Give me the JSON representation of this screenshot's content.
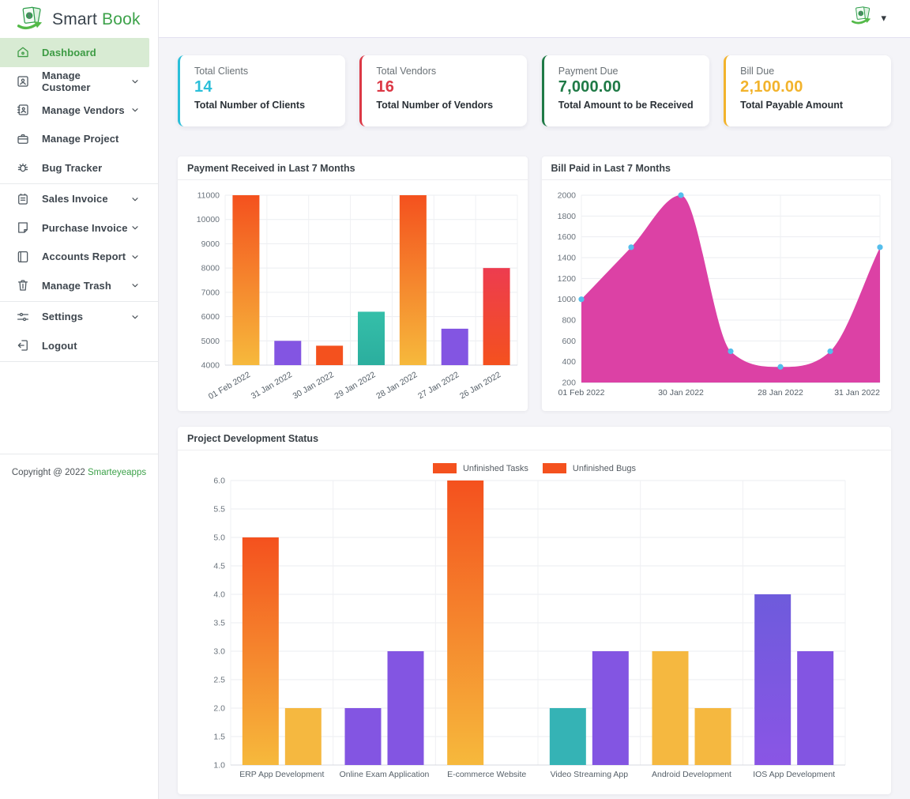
{
  "app": {
    "brand_first": "Smart ",
    "brand_second": "Book"
  },
  "topbar": {
    "icons": [
      "money-logo-icon",
      "caret-down-icon"
    ],
    "caret_glyph": "▾"
  },
  "sidebar": {
    "items": [
      {
        "label": "Dashboard",
        "icon": "home-icon",
        "active": true,
        "chevron": false
      },
      {
        "label": "Manage Customer",
        "icon": "customer-icon",
        "active": false,
        "chevron": true
      },
      {
        "label": "Manage Vendors",
        "icon": "vendors-icon",
        "active": false,
        "chevron": true
      },
      {
        "label": "Manage Project",
        "icon": "briefcase-icon",
        "active": false,
        "chevron": false
      },
      {
        "label": "Bug Tracker",
        "icon": "bug-icon",
        "active": false,
        "chevron": false,
        "divider_after": true
      },
      {
        "label": "Sales Invoice",
        "icon": "sales-invoice-icon",
        "active": false,
        "chevron": true
      },
      {
        "label": "Purchase Invoice",
        "icon": "purchase-invoice-icon",
        "active": false,
        "chevron": true
      },
      {
        "label": "Accounts Report",
        "icon": "accounts-report-icon",
        "active": false,
        "chevron": true
      },
      {
        "label": "Manage Trash",
        "icon": "trash-icon",
        "active": false,
        "chevron": true,
        "divider_after": true
      },
      {
        "label": "Settings",
        "icon": "settings-sliders-icon",
        "active": false,
        "chevron": true
      },
      {
        "label": "Logout",
        "icon": "logout-icon",
        "active": false,
        "chevron": false,
        "divider_after": true
      }
    ],
    "copyright_prefix": "Copyright @ 2022",
    "copyright_link": "Smarteyeapps"
  },
  "stats": [
    {
      "label": "Total Clients",
      "value": "14",
      "sublabel": "Total Number of Clients",
      "color": "#2BBFD9"
    },
    {
      "label": "Total Vendors",
      "value": "16",
      "sublabel": "Total Number of Vendors",
      "color": "#DC3845"
    },
    {
      "label": "Payment Due",
      "value": "7,000.00",
      "sublabel": "Total Amount to be Received",
      "color": "#1F7A46"
    },
    {
      "label": "Bill Due",
      "value": "2,100.00",
      "sublabel": "Total Payable Amount",
      "color": "#F2B32C"
    }
  ],
  "chart_data": [
    {
      "type": "bar",
      "title": "Payment Received in Last 7 Months",
      "categories": [
        "01 Feb 2022",
        "31 Jan 2022",
        "30 Jan 2022",
        "29 Jan 2022",
        "28 Jan 2022",
        "27 Jan 2022",
        "26 Jan 2022"
      ],
      "values": [
        11000,
        5000,
        4800,
        6200,
        11000,
        5500,
        8000
      ],
      "colors": [
        [
          "#F4511E",
          "#F6B93C"
        ],
        "#8355E2",
        "#F4511E",
        [
          "#35BFA9",
          "#2BAE9E"
        ],
        [
          "#F4511E",
          "#F6B93C"
        ],
        "#8355E2",
        [
          "#ED3C4F",
          "#F4511E"
        ]
      ],
      "ylim": [
        4000,
        11000
      ],
      "ytick_step": 1000,
      "grid": true,
      "x_label_rotation": -30
    },
    {
      "type": "area",
      "title": "Bill Paid in Last 7 Months",
      "values": [
        1000,
        1500,
        2000,
        500,
        350,
        500,
        1500
      ],
      "x_tick_labels": [
        "01 Feb 2022",
        "30 Jan 2022",
        "28 Jan 2022",
        "31 Jan 2022"
      ],
      "x_tick_indices": [
        0,
        2,
        4,
        6
      ],
      "ylim": [
        200,
        2000
      ],
      "ytick_step": 200,
      "fill_color": "#DC41A5",
      "marker_color": "#54BEEC",
      "grid": true
    },
    {
      "type": "grouped_bar",
      "title": "Project Development Status",
      "categories": [
        "ERP App Development",
        "Online Exam Application",
        "E-commerce Website",
        "Video Streaming App",
        "Android Development",
        "IOS App Development"
      ],
      "series": [
        {
          "name": "Unfinished Tasks",
          "values": [
            5,
            2,
            6,
            2,
            3,
            4
          ]
        },
        {
          "name": "Unfinished Bugs",
          "values": [
            2,
            3,
            1,
            3,
            2,
            3
          ]
        }
      ],
      "bar_colors": [
        [
          [
            "#F4511E",
            "#F6B93C"
          ],
          "#F5B840"
        ],
        [
          "#8355E2",
          "#8355E2"
        ],
        [
          [
            "#F4511E",
            "#F6B93C"
          ],
          null
        ],
        [
          "#35B3B5",
          "#8355E2"
        ],
        [
          "#F5B840",
          "#F5B840"
        ],
        [
          [
            "#6E5BDC",
            "#8A55E5"
          ],
          "#8355E2"
        ]
      ],
      "ylim": [
        1,
        6
      ],
      "ytick_step": 0.5,
      "tick_format": "1f",
      "legend_position": "top",
      "legend": [
        {
          "label": "Unfinished Tasks",
          "color": "#F4511E"
        },
        {
          "label": "Unfinished Bugs",
          "color": "#F4511E"
        }
      ]
    }
  ]
}
